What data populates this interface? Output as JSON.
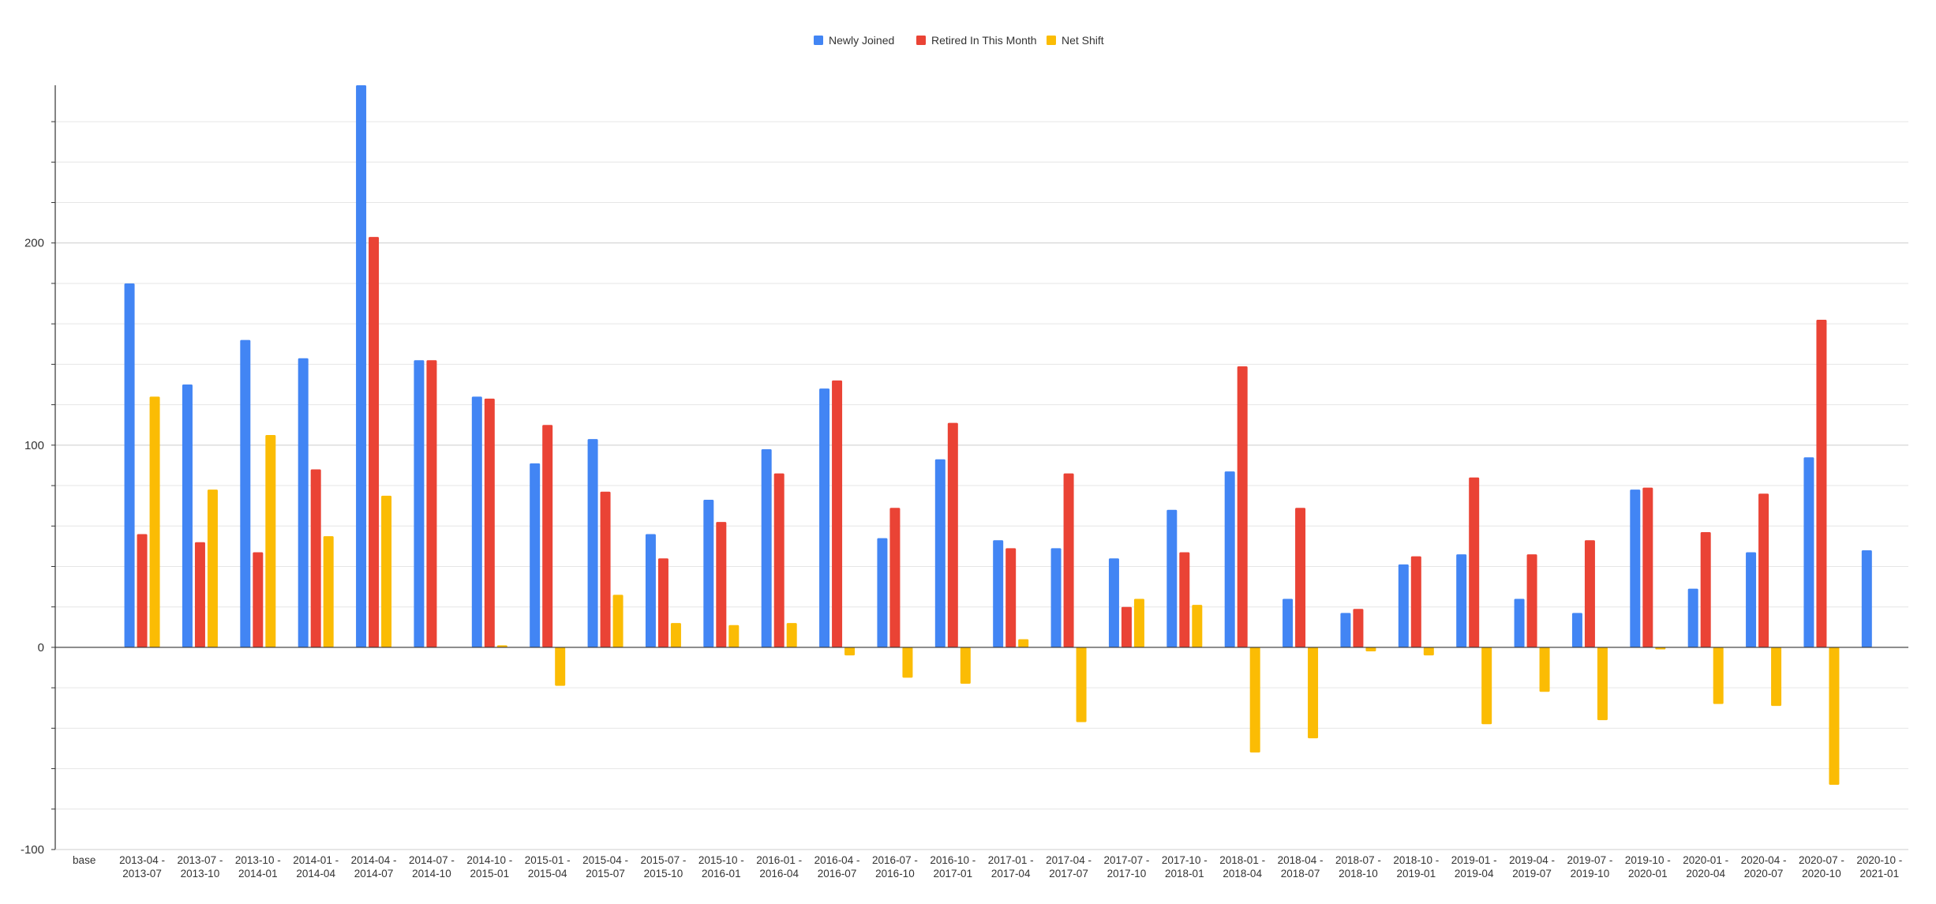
{
  "chart_data": {
    "type": "bar",
    "title": "",
    "xlabel": "",
    "ylabel": "",
    "ylim": [
      -100,
      278
    ],
    "yticks": [
      -100,
      0,
      100,
      200
    ],
    "grid": true,
    "legend_position": "top-center",
    "categories": [
      [
        "base",
        ""
      ],
      [
        "2013-04 -",
        "2013-07"
      ],
      [
        "2013-07 -",
        "2013-10"
      ],
      [
        "2013-10 -",
        "2014-01"
      ],
      [
        "2014-01 -",
        "2014-04"
      ],
      [
        "2014-04 -",
        "2014-07"
      ],
      [
        "2014-07 -",
        "2014-10"
      ],
      [
        "2014-10 -",
        "2015-01"
      ],
      [
        "2015-01 -",
        "2015-04"
      ],
      [
        "2015-04 -",
        "2015-07"
      ],
      [
        "2015-07 -",
        "2015-10"
      ],
      [
        "2015-10 -",
        "2016-01"
      ],
      [
        "2016-01 -",
        "2016-04"
      ],
      [
        "2016-04 -",
        "2016-07"
      ],
      [
        "2016-07 -",
        "2016-10"
      ],
      [
        "2016-10 -",
        "2017-01"
      ],
      [
        "2017-01 -",
        "2017-04"
      ],
      [
        "2017-04 -",
        "2017-07"
      ],
      [
        "2017-07 -",
        "2017-10"
      ],
      [
        "2017-10 -",
        "2018-01"
      ],
      [
        "2018-01 -",
        "2018-04"
      ],
      [
        "2018-04 -",
        "2018-07"
      ],
      [
        "2018-07 -",
        "2018-10"
      ],
      [
        "2018-10 -",
        "2019-01"
      ],
      [
        "2019-01 -",
        "2019-04"
      ],
      [
        "2019-04 -",
        "2019-07"
      ],
      [
        "2019-07 -",
        "2019-10"
      ],
      [
        "2019-10 -",
        "2020-01"
      ],
      [
        "2020-01 -",
        "2020-04"
      ],
      [
        "2020-04 -",
        "2020-07"
      ],
      [
        "2020-07 -",
        "2020-10"
      ],
      [
        "2020-10 -",
        "2021-01"
      ]
    ],
    "series": [
      {
        "name": "Newly Joined",
        "color": "#4285F4",
        "values": [
          null,
          180,
          130,
          152,
          143,
          278,
          142,
          124,
          91,
          103,
          56,
          73,
          98,
          128,
          54,
          93,
          53,
          49,
          44,
          68,
          87,
          24,
          17,
          41,
          46,
          24,
          17,
          78,
          29,
          47,
          94,
          48
        ]
      },
      {
        "name": "Retired In This Month",
        "color": "#EA4335",
        "values": [
          null,
          56,
          52,
          47,
          88,
          203,
          142,
          123,
          110,
          77,
          44,
          62,
          86,
          132,
          69,
          111,
          49,
          86,
          20,
          47,
          139,
          69,
          19,
          45,
          84,
          46,
          53,
          79,
          57,
          76,
          162,
          null
        ]
      },
      {
        "name": "Net Shift",
        "color": "#FBBC04",
        "values": [
          null,
          124,
          78,
          105,
          55,
          75,
          0,
          1,
          -19,
          26,
          12,
          11,
          12,
          -4,
          -15,
          -18,
          4,
          -37,
          24,
          21,
          -52,
          -45,
          -2,
          -4,
          -38,
          -22,
          -36,
          -1,
          -28,
          -29,
          -68,
          null
        ]
      }
    ]
  }
}
